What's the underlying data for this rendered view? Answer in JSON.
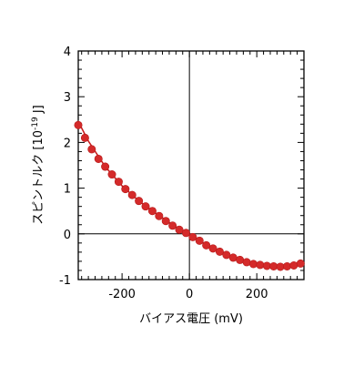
{
  "chart_data": {
    "type": "scatter",
    "xlabel": "バイアス電圧 (mV)",
    "ylabel_main": "スピントルク [10",
    "ylabel_sup": "-19",
    "ylabel_unit": " J]",
    "xlim": [
      -330,
      340
    ],
    "ylim": [
      -1,
      4
    ],
    "x_ticks": [
      -200,
      0,
      200
    ],
    "x_tick_labels": [
      "-200",
      "0",
      "200"
    ],
    "y_ticks": [
      -1,
      0,
      1,
      2,
      3,
      4
    ],
    "y_tick_labels": [
      "-1",
      "0",
      "1",
      "2",
      "3",
      "4"
    ],
    "zero_lines": true,
    "grid": false,
    "fit_line": true,
    "colors": {
      "marker": "#d42a2a",
      "line": "#c81e1e",
      "axes": "#000000"
    },
    "series": [
      {
        "x": [
          -330,
          -310,
          -290,
          -270,
          -250,
          -230,
          -210,
          -190,
          -170,
          -150,
          -130,
          -110,
          -90,
          -70,
          -50,
          -30,
          -10,
          10,
          30,
          50,
          70,
          90,
          110,
          130,
          150,
          170,
          190,
          210,
          230,
          250,
          270,
          290,
          310,
          330
        ],
        "y": [
          2.38,
          2.1,
          1.85,
          1.64,
          1.47,
          1.3,
          1.14,
          0.98,
          0.85,
          0.72,
          0.6,
          0.5,
          0.39,
          0.28,
          0.18,
          0.09,
          0.02,
          -0.07,
          -0.15,
          -0.25,
          -0.32,
          -0.39,
          -0.46,
          -0.52,
          -0.57,
          -0.62,
          -0.66,
          -0.68,
          -0.7,
          -0.71,
          -0.72,
          -0.71,
          -0.69,
          -0.65
        ]
      }
    ],
    "fit": {
      "x": [
        -340,
        -300,
        -250,
        -200,
        -150,
        -100,
        -50,
        0,
        50,
        100,
        150,
        200,
        250,
        300,
        340
      ],
      "y": [
        2.6,
        2.03,
        1.47,
        1.05,
        0.72,
        0.45,
        0.2,
        -0.02,
        -0.24,
        -0.43,
        -0.57,
        -0.66,
        -0.71,
        -0.72,
        -0.64
      ]
    }
  }
}
